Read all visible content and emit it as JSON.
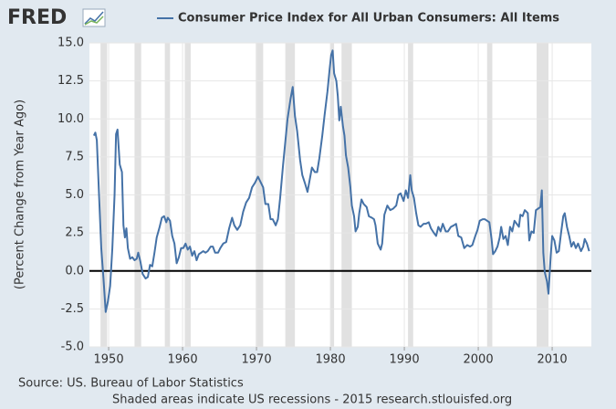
{
  "chart_data": {
    "type": "line",
    "logo": "FRED",
    "ylabel": "(Percent Change from Year Ago)",
    "source": "Source: US. Bureau of Labor Statistics",
    "note": "Shaded areas indicate US recessions - 2015 research.stlouisfed.org",
    "xlim": [
      1947.4,
      2015.3
    ],
    "ylim": [
      -5,
      15
    ],
    "xticks": [
      1950,
      1960,
      1970,
      1980,
      1990,
      2000,
      2010
    ],
    "yticks": [
      {
        "value": 15,
        "label": "15.0"
      },
      {
        "value": 12.5,
        "label": "12.5"
      },
      {
        "value": 10,
        "label": "10.0"
      },
      {
        "value": 7.5,
        "label": "7.5"
      },
      {
        "value": 5,
        "label": "5.0"
      },
      {
        "value": 2.5,
        "label": "2.5"
      },
      {
        "value": 0,
        "label": "0.0"
      },
      {
        "value": -2.5,
        "label": "-2.5"
      },
      {
        "value": -5,
        "label": "-5.0"
      }
    ],
    "grid": true,
    "recession_color": "#e1e1e1",
    "recessions": [
      [
        1948.9,
        1949.8
      ],
      [
        1953.5,
        1954.4
      ],
      [
        1957.6,
        1958.3
      ],
      [
        1960.3,
        1961.1
      ],
      [
        1969.9,
        1970.9
      ],
      [
        1973.9,
        1975.2
      ],
      [
        1980.0,
        1980.5
      ],
      [
        1981.5,
        1982.9
      ],
      [
        1990.5,
        1991.2
      ],
      [
        2001.2,
        2001.9
      ],
      [
        2007.9,
        2009.5
      ]
    ],
    "x": [
      1948.0,
      1948.2,
      1948.4,
      1948.7,
      1949.0,
      1949.3,
      1949.6,
      1949.9,
      1950.2,
      1950.5,
      1950.8,
      1951.0,
      1951.2,
      1951.5,
      1951.8,
      1952.0,
      1952.2,
      1952.4,
      1952.6,
      1952.9,
      1953.2,
      1953.5,
      1953.8,
      1954.0,
      1954.3,
      1954.6,
      1955.0,
      1955.3,
      1955.6,
      1955.9,
      1956.2,
      1956.5,
      1956.9,
      1957.2,
      1957.5,
      1957.8,
      1958.0,
      1958.3,
      1958.6,
      1958.9,
      1959.2,
      1959.5,
      1959.8,
      1960.1,
      1960.4,
      1960.7,
      1961.0,
      1961.3,
      1961.6,
      1961.9,
      1962.2,
      1962.5,
      1962.8,
      1963.1,
      1963.4,
      1963.8,
      1964.1,
      1964.4,
      1964.8,
      1965.1,
      1965.5,
      1965.9,
      1966.3,
      1966.7,
      1967.0,
      1967.4,
      1967.8,
      1968.2,
      1968.6,
      1969.0,
      1969.4,
      1969.8,
      1970.2,
      1970.6,
      1970.9,
      1971.2,
      1971.6,
      1971.9,
      1972.2,
      1972.6,
      1972.9,
      1973.2,
      1973.6,
      1973.9,
      1974.2,
      1974.6,
      1974.9,
      1975.2,
      1975.5,
      1975.9,
      1976.2,
      1976.6,
      1976.9,
      1977.2,
      1977.5,
      1977.9,
      1978.2,
      1978.5,
      1978.9,
      1979.2,
      1979.6,
      1979.9,
      1980.1,
      1980.3,
      1980.5,
      1980.8,
      1981.0,
      1981.2,
      1981.4,
      1981.7,
      1981.9,
      1982.1,
      1982.4,
      1982.7,
      1982.9,
      1983.2,
      1983.4,
      1983.7,
      1983.9,
      1984.2,
      1984.5,
      1984.9,
      1985.2,
      1985.6,
      1985.9,
      1986.1,
      1986.4,
      1986.8,
      1987.0,
      1987.3,
      1987.7,
      1988.1,
      1988.5,
      1988.9,
      1989.2,
      1989.5,
      1989.9,
      1990.2,
      1990.5,
      1990.8,
      1991.0,
      1991.3,
      1991.6,
      1991.9,
      1992.2,
      1992.6,
      1992.9,
      1993.3,
      1993.6,
      1994.0,
      1994.3,
      1994.6,
      1994.9,
      1995.2,
      1995.6,
      1995.9,
      1996.3,
      1996.7,
      1997.0,
      1997.3,
      1997.7,
      1998.1,
      1998.5,
      1998.9,
      1999.2,
      1999.6,
      1999.9,
      2000.2,
      2000.6,
      2000.9,
      2001.2,
      2001.5,
      2001.8,
      2002.0,
      2002.3,
      2002.6,
      2002.9,
      2003.1,
      2003.4,
      2003.7,
      2004.0,
      2004.3,
      2004.6,
      2004.9,
      2005.2,
      2005.5,
      2005.7,
      2006.0,
      2006.3,
      2006.7,
      2006.9,
      2007.2,
      2007.5,
      2007.8,
      2008.1,
      2008.4,
      2008.6,
      2008.8,
      2009.0,
      2009.3,
      2009.5,
      2009.8,
      2010.0,
      2010.3,
      2010.6,
      2010.9,
      2011.2,
      2011.5,
      2011.7,
      2012.0,
      2012.3,
      2012.6,
      2012.9,
      2013.2,
      2013.5,
      2013.9,
      2014.2,
      2014.4,
      2014.7,
      2015.0
    ],
    "series": [
      {
        "name": "Consumer Price Index for All Urban Consumers: All Items",
        "color": "#4572a7",
        "values": [
          8.9,
          9.1,
          8.6,
          5.0,
          1.5,
          -0.5,
          -2.7,
          -2.0,
          -1.0,
          1.5,
          5.0,
          9.0,
          9.3,
          7.0,
          6.5,
          3.0,
          2.2,
          2.8,
          1.5,
          0.8,
          0.9,
          0.7,
          0.8,
          1.2,
          0.6,
          -0.2,
          -0.5,
          -0.4,
          0.4,
          0.3,
          1.2,
          2.2,
          2.9,
          3.5,
          3.6,
          3.2,
          3.5,
          3.3,
          2.3,
          1.8,
          0.5,
          0.9,
          1.5,
          1.5,
          1.8,
          1.4,
          1.6,
          1.0,
          1.3,
          0.7,
          1.1,
          1.2,
          1.3,
          1.2,
          1.3,
          1.6,
          1.6,
          1.2,
          1.2,
          1.5,
          1.8,
          1.9,
          2.8,
          3.5,
          3.0,
          2.7,
          3.0,
          3.9,
          4.5,
          4.8,
          5.5,
          5.8,
          6.2,
          5.8,
          5.5,
          4.4,
          4.4,
          3.4,
          3.4,
          3.0,
          3.4,
          4.8,
          7.0,
          8.5,
          10.0,
          11.3,
          12.1,
          10.2,
          9.2,
          7.3,
          6.3,
          5.7,
          5.2,
          6.0,
          6.8,
          6.5,
          6.5,
          7.4,
          8.9,
          10.2,
          11.8,
          13.3,
          14.2,
          14.5,
          13.0,
          12.5,
          11.5,
          9.9,
          10.8,
          9.5,
          8.9,
          7.6,
          6.8,
          5.5,
          4.3,
          3.6,
          2.6,
          2.9,
          3.8,
          4.7,
          4.4,
          4.2,
          3.6,
          3.5,
          3.4,
          3.0,
          1.8,
          1.4,
          1.8,
          3.7,
          4.3,
          4.0,
          4.1,
          4.3,
          5.0,
          5.1,
          4.6,
          5.3,
          4.8,
          6.3,
          5.3,
          4.8,
          3.8,
          3.0,
          2.9,
          3.1,
          3.1,
          3.2,
          2.8,
          2.5,
          2.3,
          2.9,
          2.6,
          3.1,
          2.6,
          2.6,
          2.9,
          3.0,
          3.1,
          2.3,
          2.2,
          1.5,
          1.7,
          1.6,
          1.7,
          2.3,
          2.7,
          3.3,
          3.4,
          3.4,
          3.3,
          3.2,
          2.1,
          1.1,
          1.3,
          1.6,
          2.2,
          2.9,
          2.1,
          2.3,
          1.7,
          2.9,
          2.6,
          3.3,
          3.1,
          2.9,
          3.7,
          3.6,
          4.0,
          3.8,
          2.0,
          2.6,
          2.5,
          4.0,
          4.1,
          4.2,
          5.3,
          1.2,
          -0.1,
          -0.7,
          -1.5,
          1.0,
          2.3,
          2.0,
          1.2,
          1.3,
          2.5,
          3.6,
          3.8,
          2.9,
          2.3,
          1.6,
          1.9,
          1.5,
          1.8,
          1.3,
          1.6,
          2.1,
          1.8,
          1.3
        ]
      }
    ]
  }
}
